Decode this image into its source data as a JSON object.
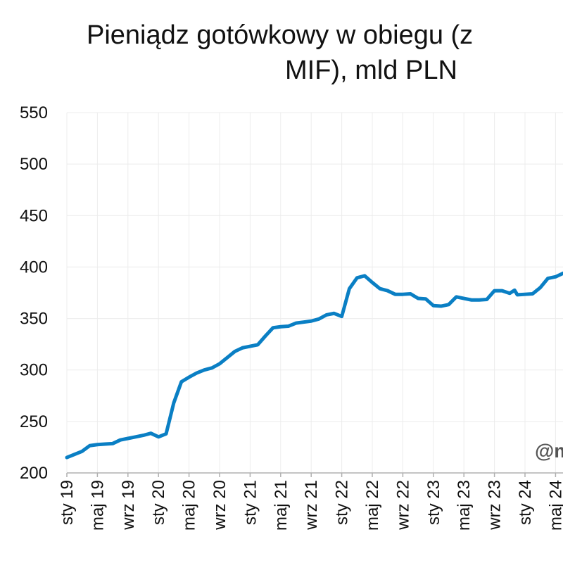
{
  "chart_data": {
    "type": "line",
    "title_lines": [
      "Pieniądz gotówkowy w obiegu (z",
      "MIF), mld PLN"
    ],
    "xlabel": "",
    "ylabel": "",
    "ylim": [
      200,
      550
    ],
    "yticks": [
      200,
      250,
      300,
      350,
      400,
      450,
      500,
      550
    ],
    "xlim": [
      "2019-01",
      "2024-06"
    ],
    "xticks": [
      {
        "x": "2019-01",
        "label": "sty 19"
      },
      {
        "x": "2019-05",
        "label": "maj 19"
      },
      {
        "x": "2019-09",
        "label": "wrz 19"
      },
      {
        "x": "2020-01",
        "label": "sty 20"
      },
      {
        "x": "2020-05",
        "label": "maj 20"
      },
      {
        "x": "2020-09",
        "label": "wrz 20"
      },
      {
        "x": "2021-01",
        "label": "sty 21"
      },
      {
        "x": "2021-05",
        "label": "maj 21"
      },
      {
        "x": "2021-09",
        "label": "wrz 21"
      },
      {
        "x": "2022-01",
        "label": "sty 22"
      },
      {
        "x": "2022-05",
        "label": "maj 22"
      },
      {
        "x": "2022-09",
        "label": "wrz 22"
      },
      {
        "x": "2023-01",
        "label": "sty 23"
      },
      {
        "x": "2023-05",
        "label": "maj 23"
      },
      {
        "x": "2023-09",
        "label": "wrz 23"
      },
      {
        "x": "2024-01",
        "label": "sty 24"
      },
      {
        "x": "2024-05",
        "label": "maj 24"
      }
    ],
    "grid": true,
    "series": [
      {
        "color": "#0a7fc4",
        "points": [
          [
            "2019-01",
            215
          ],
          [
            "2019-02",
            218
          ],
          [
            "2019-03",
            221
          ],
          [
            "2019-04",
            226.5
          ],
          [
            "2019-05",
            227.5
          ],
          [
            "2019-06",
            228
          ],
          [
            "2019-07",
            228.5
          ],
          [
            "2019-08",
            232
          ],
          [
            "2019-09",
            233.5
          ],
          [
            "2019-10",
            235
          ],
          [
            "2019-11",
            236.5
          ],
          [
            "2019-12",
            238.5
          ],
          [
            "2020-01",
            235
          ],
          [
            "2020-02",
            238
          ],
          [
            "2020-03",
            268
          ],
          [
            "2020-04",
            288.5
          ],
          [
            "2020-05",
            293
          ],
          [
            "2020-06",
            297
          ],
          [
            "2020-07",
            300
          ],
          [
            "2020-08",
            302
          ],
          [
            "2020-09",
            306
          ],
          [
            "2020-10",
            312
          ],
          [
            "2020-11",
            318
          ],
          [
            "2020-12",
            321.5
          ],
          [
            "2021-01",
            323
          ],
          [
            "2021-02",
            324.5
          ],
          [
            "2021-03",
            333
          ],
          [
            "2021-04",
            341
          ],
          [
            "2021-05",
            342
          ],
          [
            "2021-06",
            342.5
          ],
          [
            "2021-07",
            345.5
          ],
          [
            "2021-08",
            346.5
          ],
          [
            "2021-09",
            347.5
          ],
          [
            "2021-10",
            349.5
          ],
          [
            "2021-11",
            353.5
          ],
          [
            "2021-12",
            355
          ],
          [
            "2022-01",
            352
          ],
          [
            "2022-02",
            379
          ],
          [
            "2022-03",
            389.5
          ],
          [
            "2022-04",
            391.5
          ],
          [
            "2022-05",
            385
          ],
          [
            "2022-06",
            379
          ],
          [
            "2022-07",
            377
          ],
          [
            "2022-08",
            373.5
          ],
          [
            "2022-09",
            373.5
          ],
          [
            "2022-10",
            374
          ],
          [
            "2022-11",
            369.5
          ],
          [
            "2022-12",
            369
          ],
          [
            "2023-01",
            362.5
          ],
          [
            "2023-02",
            362
          ],
          [
            "2023-03",
            363.5
          ],
          [
            "2023-04",
            371
          ],
          [
            "2023-05",
            369.5
          ],
          [
            "2023-06",
            368
          ],
          [
            "2023-07",
            368
          ],
          [
            "2023-08",
            368.5
          ],
          [
            "2023-09",
            377
          ],
          [
            "2023-10",
            377
          ],
          [
            "2023-11",
            374.5
          ],
          [
            "2023-11-20",
            377.5
          ],
          [
            "2023-12",
            373
          ],
          [
            "2024-01",
            373.5
          ],
          [
            "2024-02",
            374
          ],
          [
            "2024-03",
            380
          ],
          [
            "2024-04",
            389
          ],
          [
            "2024-05",
            390.5
          ],
          [
            "2024-06",
            394
          ]
        ]
      }
    ]
  },
  "watermark": "@m"
}
